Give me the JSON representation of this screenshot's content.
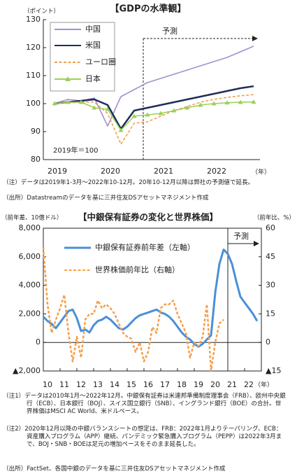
{
  "chart_data": [
    {
      "type": "line",
      "title": "【GDPの水準観】",
      "y_label": "（ポイント）",
      "x_label": "（年）",
      "annotations": [
        "予測",
        "2019年＝100"
      ],
      "categories": [
        "2019",
        null,
        null,
        null,
        "2020",
        null,
        null,
        null,
        "2021",
        null,
        null,
        null,
        "2022",
        null,
        null,
        null
      ],
      "series": [
        {
          "name": "中国",
          "color": "#a58fd0",
          "dash": false,
          "marker": "none",
          "values": [
            100,
            101.5,
            101,
            102,
            92,
            102.5,
            105,
            107.5,
            109,
            110.5,
            112,
            113.5,
            115,
            116.5,
            118.5,
            120.5
          ]
        },
        {
          "name": "米国",
          "color": "#1f2d5a",
          "dash": false,
          "marker": "none",
          "values": [
            100,
            100.5,
            101,
            101.5,
            99.5,
            91,
            97.5,
            98.5,
            99.5,
            100.5,
            101.5,
            102.5,
            103.5,
            104.5,
            105.5,
            106.2
          ]
        },
        {
          "name": "ユーロ圏",
          "color": "#f0a050",
          "dash": true,
          "marker": "none",
          "values": [
            100,
            100.2,
            100.5,
            100.5,
            96.5,
            85.5,
            93,
            93.5,
            95.5,
            97.5,
            99,
            100.5,
            101.5,
            102.2,
            102.8,
            103.2
          ]
        },
        {
          "name": "日本",
          "color": "#9ccf5a",
          "dash": false,
          "marker": "triangle",
          "values": [
            100,
            100.5,
            100.5,
            98.5,
            98,
            90.5,
            95.5,
            96,
            96.5,
            97.5,
            98.5,
            99.5,
            100,
            100.3,
            100.5,
            100.6
          ]
        }
      ],
      "ylim": [
        80,
        130
      ],
      "yticks": [
        80,
        90,
        100,
        110,
        120,
        130
      ],
      "notes": [
        "（注）データは2019年1-3月～2022年10-12月。20年10-12月以降は弊社の予測値で延長。",
        "（出所）Datastreamのデータを基に三井住友DSアセットマネジメント作成"
      ]
    },
    {
      "type": "line",
      "title": "【中銀保有証券の変化と世界株価】",
      "y_label": "（前年差、10億ドル）",
      "y2_label": "（前年比、%）",
      "x_label": "（年）",
      "annotations": [
        "予測"
      ],
      "x": [
        2010,
        2010.25,
        2010.5,
        2010.75,
        2011,
        2011.25,
        2011.5,
        2011.75,
        2012,
        2012.25,
        2012.5,
        2012.75,
        2013,
        2013.25,
        2013.5,
        2013.75,
        2014,
        2014.25,
        2014.5,
        2014.75,
        2015,
        2015.25,
        2015.5,
        2015.75,
        2016,
        2016.25,
        2016.5,
        2016.75,
        2017,
        2017.25,
        2017.5,
        2017.75,
        2018,
        2018.25,
        2018.5,
        2018.75,
        2019,
        2019.25,
        2019.5,
        2019.75,
        2020,
        2020.25,
        2020.5,
        2020.75,
        2021,
        2021.25,
        2021.5,
        2021.75,
        2022,
        2022.25,
        2022.5,
        2022.75
      ],
      "xlim": [
        2010,
        2023
      ],
      "xticks": [
        {
          "value": 2010,
          "label": "10"
        },
        {
          "value": 2011,
          "label": "11"
        },
        {
          "value": 2012,
          "label": "12"
        },
        {
          "value": 2013,
          "label": "13"
        },
        {
          "value": 2014,
          "label": "14"
        },
        {
          "value": 2015,
          "label": "15"
        },
        {
          "value": 2016,
          "label": "16"
        },
        {
          "value": 2017,
          "label": "17"
        },
        {
          "value": 2018,
          "label": "18"
        },
        {
          "value": 2019,
          "label": "19"
        },
        {
          "value": 2020,
          "label": "20"
        },
        {
          "value": 2021,
          "label": "21"
        },
        {
          "value": 2022,
          "label": "22"
        }
      ],
      "series": [
        {
          "name": "中銀保有証券前年差（左軸）",
          "color": "#4a8fd8",
          "dash": false,
          "axis": "y",
          "values": [
            1800,
            1500,
            1300,
            1000,
            1400,
            1800,
            2200,
            2300,
            1700,
            800,
            900,
            700,
            1200,
            1500,
            1600,
            1800,
            1600,
            1300,
            1000,
            900,
            1100,
            1400,
            1700,
            1900,
            2000,
            2100,
            2200,
            2300,
            2100,
            2000,
            1800,
            1500,
            1100,
            700,
            400,
            200,
            -100,
            -300,
            -100,
            200,
            500,
            3500,
            5500,
            6500,
            6200,
            5500,
            4300,
            3200,
            2800,
            2400,
            2000,
            1500
          ]
        },
        {
          "name": "世界株価前年比（右軸）",
          "color": "#f5a04a",
          "dash": true,
          "axis": "y2",
          "values": [
            50,
            20,
            5,
            12,
            18,
            25,
            5,
            -10,
            3,
            -8,
            12,
            15,
            15,
            22,
            18,
            20,
            18,
            15,
            10,
            5,
            3,
            2,
            -5,
            0,
            -10,
            -5,
            8,
            5,
            18,
            20,
            20,
            22,
            15,
            10,
            5,
            -8,
            0,
            -2,
            3,
            20,
            -15,
            0,
            10,
            12,
            null,
            null,
            null,
            null,
            null,
            null,
            null,
            null
          ]
        }
      ],
      "ylim": [
        -2000,
        8000
      ],
      "yticks": [
        {
          "value": -2000,
          "label": "▲2,000"
        },
        0,
        {
          "value": 2000,
          "label": "2,000"
        },
        {
          "value": 4000,
          "label": "4,000"
        },
        {
          "value": 6000,
          "label": "6,000"
        },
        {
          "value": 8000,
          "label": "8,000"
        }
      ],
      "y2lim": [
        -15,
        60
      ],
      "y2ticks": [
        {
          "value": -15,
          "label": "▲15"
        },
        0,
        15,
        30,
        45,
        60
      ],
      "notes": [
        "（注1）データは2010年1月～2022年12月。中銀保有証券は米連邦準備制度理事会（FRB）、欧州中央銀行（ECB）、日本銀行（BOJ）、スイス国立銀行（SNB）、イングランド銀行（BOE）の合計。世界株価はMSCI AC World、米ドルベース。",
        "（注2）2020年12月以降の中銀バランスシートの想定は、FRB：2022年1月よりテーパリング、ECB：資産購入プログラム（APP）継続、パンデミック緊急購入プログラム（PEPP）は2022年3月まで、BOJ・SNB・BOEは足元の増加ペースをそのまま延長した。",
        "（出所）FactSet、各国中銀のデータを基に三井住友DSアセットマネジメント作成"
      ]
    }
  ]
}
